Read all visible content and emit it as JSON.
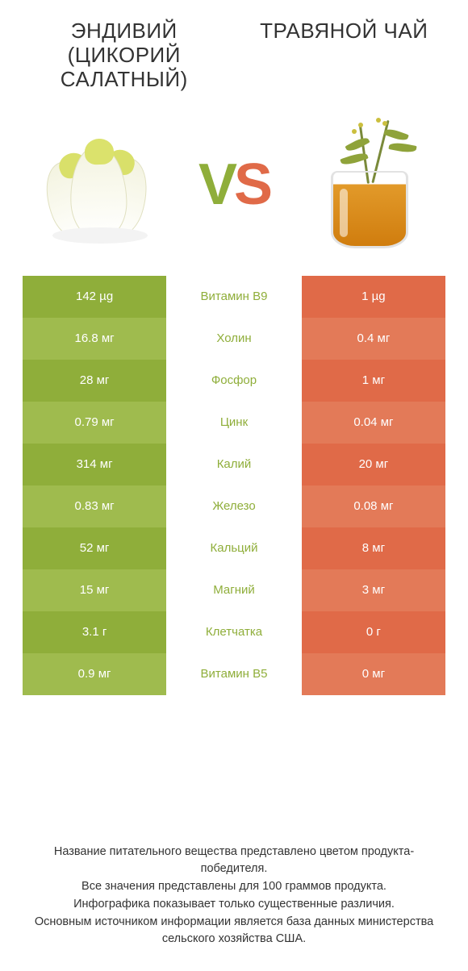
{
  "colors": {
    "left_full": "#8fae3a",
    "left_alt": "#9fbb4e",
    "right_full": "#e06a48",
    "right_alt": "#e37a58",
    "mid_text": "#555555",
    "title": "#333333",
    "vs_left": "#8fae3a",
    "vs_right": "#e06a48"
  },
  "header": {
    "left_title": "ЭНДИВИЙ (ЦИКОРИЙ САЛАТНЫЙ)",
    "right_title": "ТРАВЯНОЙ ЧАЙ"
  },
  "vs": {
    "v": "V",
    "s": "S"
  },
  "rows": [
    {
      "left": "142 µg",
      "label": "Витамин B9",
      "right": "1 µg"
    },
    {
      "left": "16.8 мг",
      "label": "Холин",
      "right": "0.4 мг"
    },
    {
      "left": "28 мг",
      "label": "Фосфор",
      "right": "1 мг"
    },
    {
      "left": "0.79 мг",
      "label": "Цинк",
      "right": "0.04 мг"
    },
    {
      "left": "314 мг",
      "label": "Калий",
      "right": "20 мг"
    },
    {
      "left": "0.83 мг",
      "label": "Железо",
      "right": "0.08 мг"
    },
    {
      "left": "52 мг",
      "label": "Кальций",
      "right": "8 мг"
    },
    {
      "left": "15 мг",
      "label": "Магний",
      "right": "3 мг"
    },
    {
      "left": "3.1 г",
      "label": "Клетчатка",
      "right": "0 г"
    },
    {
      "left": "0.9 мг",
      "label": "Витамин B5",
      "right": "0 мг"
    }
  ],
  "label_winner": [
    "left",
    "left",
    "left",
    "left",
    "left",
    "left",
    "left",
    "left",
    "left",
    "left"
  ],
  "footer": {
    "line1": "Название питательного вещества представлено цветом продукта-победителя.",
    "line2": "Все значения представлены для 100 граммов продукта.",
    "line3": "Инфографика показывает только существенные различия.",
    "line4": "Основным источником информации является база данных министерства сельского хозяйства США."
  }
}
